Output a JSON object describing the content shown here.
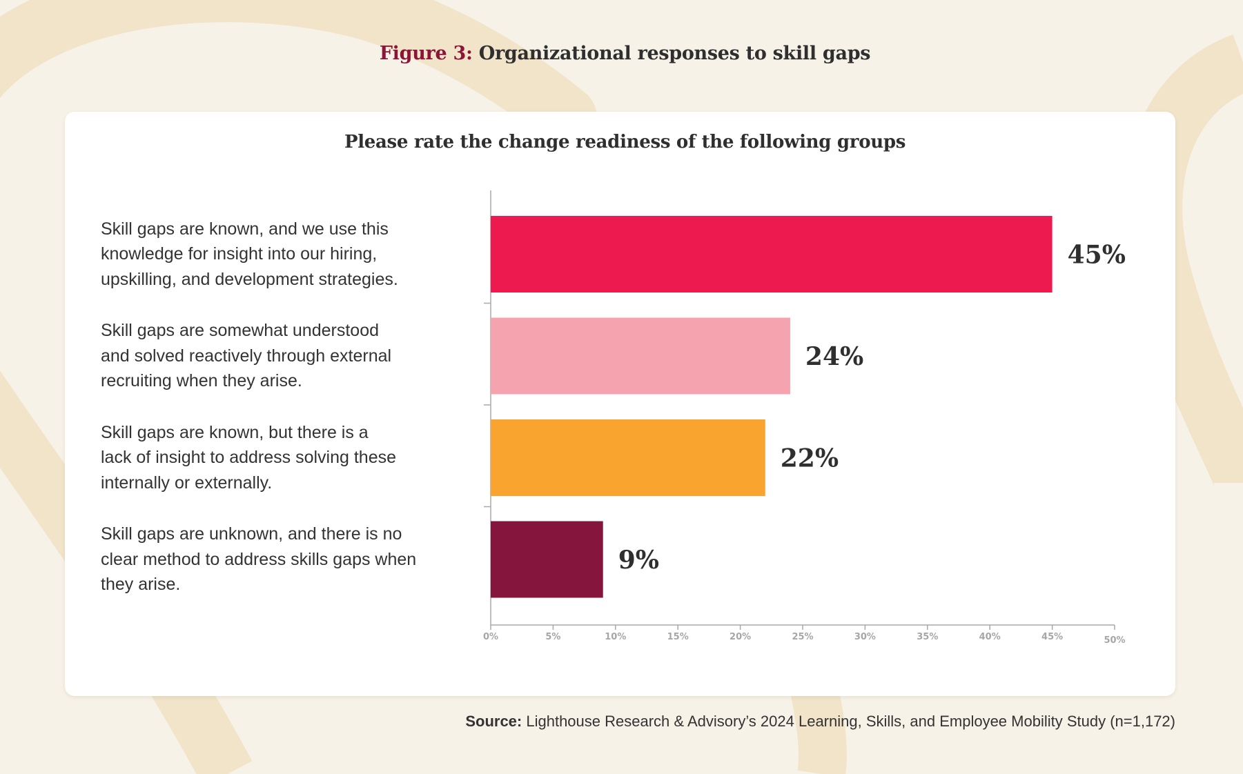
{
  "figure": {
    "label": "Figure 3:",
    "title": "Organizational responses to skill gaps"
  },
  "chart_data": {
    "type": "bar",
    "orientation": "horizontal",
    "title": "Please rate the change readiness of the following groups",
    "categories": [
      "Skill gaps are known, and we use this knowledge for insight into our hiring, upskilling, and development strategies.",
      "Skill gaps are somewhat understood and solved reactively through external recruiting when they arise.",
      "Skill gaps are known, but there is a lack of insight to address solving these internally or externally.",
      "Skill gaps are unknown, and there is no clear method to address skills gaps when they arise."
    ],
    "category_lines": [
      [
        "Skill gaps are known, and we use this",
        "knowledge for insight into our hiring,",
        "upskilling, and development strategies."
      ],
      [
        "Skill gaps are somewhat understood",
        "and solved reactively through external",
        "recruiting when they arise."
      ],
      [
        "Skill gaps are known, but there is a",
        "lack of insight to address solving these",
        "internally or externally."
      ],
      [
        "Skill gaps are unknown, and there is no",
        "clear method to address skills gaps when",
        "they arise."
      ]
    ],
    "values": [
      45,
      24,
      22,
      9
    ],
    "value_labels": [
      "45%",
      "24%",
      "22%",
      "9%"
    ],
    "colors": [
      "#ec1a4e",
      "#f5a3ae",
      "#f9a42f",
      "#85153c"
    ],
    "xlim": [
      0,
      50
    ],
    "x_ticks": [
      0,
      5,
      10,
      15,
      20,
      25,
      30,
      35,
      40,
      45,
      50
    ],
    "x_tick_labels": [
      "0%",
      "5%",
      "10%",
      "15%",
      "20%",
      "25%",
      "30%",
      "35%",
      "40%",
      "45%",
      "50%"
    ],
    "xlabel": "",
    "ylabel": "",
    "grid": false,
    "legend": "none"
  },
  "source": {
    "lead": "Source:",
    "text": " Lighthouse Research & Advisory’s 2024 Learning, Skills, and Employee Mobility Study (n=1,172)"
  }
}
